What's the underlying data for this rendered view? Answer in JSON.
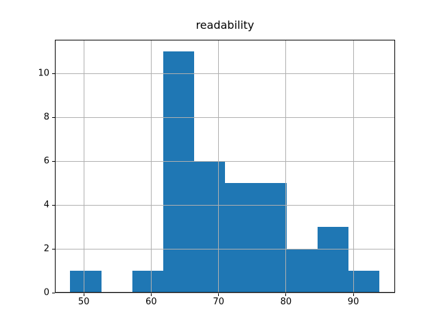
{
  "figure": {
    "background": "#ffffff"
  },
  "chart_data": {
    "type": "bar",
    "subtype": "histogram",
    "title": "readability",
    "bin_edges": [
      48.0,
      52.59,
      57.18,
      61.77,
      66.36,
      70.95,
      75.54,
      80.13,
      84.72,
      89.31,
      93.9
    ],
    "counts": [
      1,
      0,
      1,
      11,
      6,
      5,
      5,
      2,
      3,
      1
    ],
    "xlim": [
      45.71,
      96.2
    ],
    "ylim": [
      0,
      11.55
    ],
    "xticks": [
      50,
      60,
      70,
      80,
      90
    ],
    "yticks": [
      0,
      2,
      4,
      6,
      8,
      10
    ],
    "xlabel": "",
    "ylabel": "",
    "bar_color": "#1f77b4",
    "grid": true,
    "grid_color": "#b0b0b0",
    "grid_above_bars": true,
    "axis_color": "#000000",
    "legend": "none"
  }
}
